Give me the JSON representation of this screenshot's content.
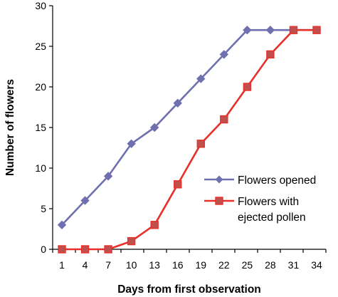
{
  "chart_data": {
    "type": "line",
    "xlabel": "Days from first observation",
    "ylabel": "Number of flowers",
    "x": [
      1,
      4,
      7,
      10,
      13,
      16,
      19,
      22,
      25,
      28,
      31,
      34
    ],
    "xticks": [
      1,
      4,
      7,
      10,
      13,
      16,
      19,
      22,
      25,
      28,
      31,
      34
    ],
    "xlim": [
      1,
      34
    ],
    "yticks": [
      0,
      5,
      10,
      15,
      20,
      25,
      30
    ],
    "ylim": [
      0,
      30
    ],
    "grid": false,
    "legend": "right",
    "series": [
      {
        "name": "Flowers opened",
        "legend_lines": [
          "Flowers opened"
        ],
        "color": "#7070b0",
        "marker": "diamond",
        "values": [
          3,
          6,
          9,
          13,
          15,
          18,
          21,
          24,
          27,
          27,
          27,
          27
        ]
      },
      {
        "name": "Flowers with ejected pollen",
        "legend_lines": [
          "Flowers with",
          "ejected pollen"
        ],
        "color": "#e8302a",
        "marker_fill": "#c0504d",
        "marker": "square",
        "values": [
          0,
          0,
          0,
          1,
          3,
          8,
          13,
          16,
          20,
          24,
          27,
          27
        ]
      }
    ]
  }
}
